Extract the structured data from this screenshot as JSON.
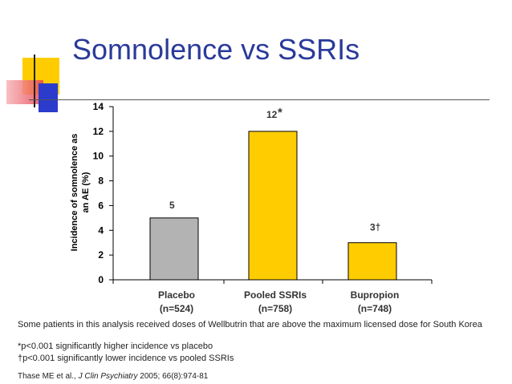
{
  "slide": {
    "title": "Somnolence vs SSRIs",
    "note": "Some patients in this analysis received doses of Wellbutrin that are above the maximum licensed dose for South Korea",
    "footnotes": [
      "*p<0.001 significantly higher incidence vs placebo",
      "†p<0.001 significantly lower incidence vs pooled SSRIs"
    ],
    "citation": {
      "authors": "Thase ME et al., ",
      "journal": "J Clin Psychiatry",
      "details": " 2005; 66(8):974-81"
    },
    "colors": {
      "title": "#2a3a9a",
      "placebo_bar": "#b3b3b3",
      "ssri_bar": "#ffcc00",
      "deco_yellow": "#ffcc00",
      "deco_blue": "#2b3bcc",
      "deco_red": "#e8434f"
    }
  },
  "chart_data": {
    "type": "bar",
    "categories": [
      "Placebo\n(n=524)",
      "Pooled SSRIs\n(n=758)",
      "Bupropion\n(n=748)"
    ],
    "category_lines": [
      [
        "Placebo",
        "(n=524)"
      ],
      [
        "Pooled SSRIs",
        "(n=758)"
      ],
      [
        "Bupropion",
        "(n=748)"
      ]
    ],
    "values": [
      5,
      12,
      3
    ],
    "data_labels": [
      "5",
      "12",
      "3†"
    ],
    "data_label_markers": [
      "",
      "*",
      ""
    ],
    "bar_colors": [
      "#b3b3b3",
      "#ffcc00",
      "#ffcc00"
    ],
    "ylabel_lines": [
      "Incidence of somnolence as",
      "an AE (%)"
    ],
    "xlabel": "",
    "ylim": [
      0,
      14
    ],
    "yticks": [
      0,
      2,
      4,
      6,
      8,
      10,
      12,
      14
    ],
    "grid": false,
    "legend": "none"
  }
}
